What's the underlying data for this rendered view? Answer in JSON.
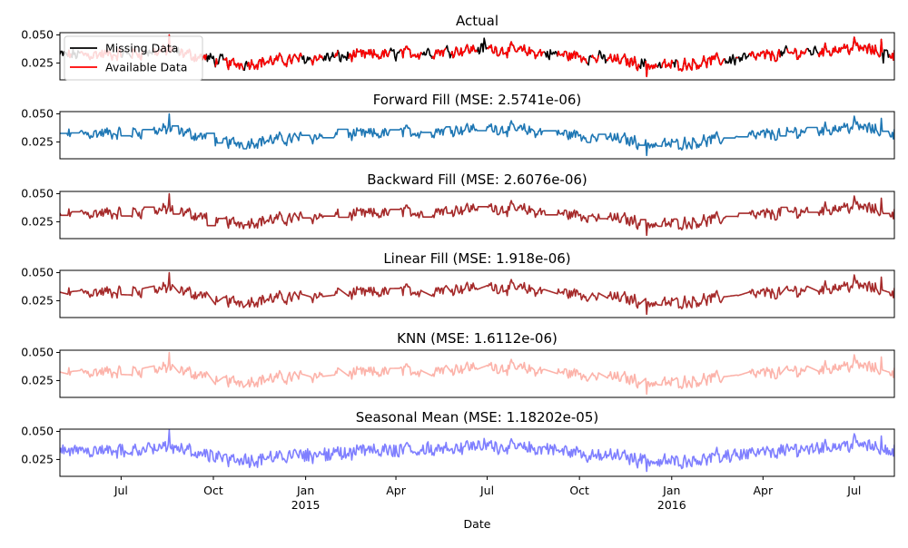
{
  "chart_data": {
    "type": "line",
    "xlabel": "Date",
    "x_range": [
      "2014-05-01",
      "2016-08-10"
    ],
    "x_ticks": [
      {
        "date": "2014-07-01",
        "label": "Jul",
        "sublabel": ""
      },
      {
        "date": "2014-10-01",
        "label": "Oct",
        "sublabel": ""
      },
      {
        "date": "2015-01-01",
        "label": "Jan",
        "sublabel": "2015"
      },
      {
        "date": "2015-04-01",
        "label": "Apr",
        "sublabel": ""
      },
      {
        "date": "2015-07-01",
        "label": "Jul",
        "sublabel": ""
      },
      {
        "date": "2015-10-01",
        "label": "Oct",
        "sublabel": ""
      },
      {
        "date": "2016-01-01",
        "label": "Jan",
        "sublabel": "2016"
      },
      {
        "date": "2016-04-01",
        "label": "Apr",
        "sublabel": ""
      },
      {
        "date": "2016-07-01",
        "label": "Jul",
        "sublabel": ""
      }
    ],
    "ylim": [
      0.01,
      0.052
    ],
    "y_ticks": [
      {
        "value": 0.025,
        "label": "0.025"
      },
      {
        "value": 0.05,
        "label": "0.050"
      }
    ],
    "grid": false,
    "base_series": {
      "trend_points": [
        [
          "2014-05-01",
          0.032
        ],
        [
          "2014-07-01",
          0.033
        ],
        [
          "2014-08-18",
          0.036
        ],
        [
          "2014-10-01",
          0.028
        ],
        [
          "2014-10-20",
          0.024
        ],
        [
          "2015-01-01",
          0.029
        ],
        [
          "2015-04-01",
          0.033
        ],
        [
          "2015-07-01",
          0.038
        ],
        [
          "2015-10-01",
          0.031
        ],
        [
          "2015-11-25",
          0.026
        ],
        [
          "2015-12-20",
          0.022
        ],
        [
          "2016-01-10",
          0.024
        ],
        [
          "2016-04-01",
          0.031
        ],
        [
          "2016-07-01",
          0.039
        ],
        [
          "2016-08-10",
          0.033
        ]
      ],
      "spikes": [
        [
          "2014-08-18",
          0.05
        ],
        [
          "2015-06-28",
          0.047
        ],
        [
          "2015-12-07",
          0.013
        ],
        [
          "2016-07-01",
          0.048
        ],
        [
          "2016-07-28",
          0.046
        ],
        [
          "2016-07-30",
          0.025
        ]
      ]
    },
    "panels": [
      {
        "title": "Actual",
        "legend": {
          "placement": "upper-left",
          "entries": [
            {
              "label": "Missing Data",
              "color": "#000000"
            },
            {
              "label": "Available Data",
              "color": "#ff0000"
            }
          ]
        },
        "series": [
          {
            "name": "Missing Data",
            "color": "#000000",
            "role": "full"
          },
          {
            "name": "Available Data",
            "color": "#ff0000",
            "role": "available"
          }
        ]
      },
      {
        "title": "Forward Fill (MSE: 2.5741e-06)",
        "series": [
          {
            "color": "#1f77b4",
            "method": "forward_fill"
          }
        ]
      },
      {
        "title": "Backward Fill (MSE: 2.6076e-06)",
        "series": [
          {
            "color": "#a52a2a",
            "method": "backward_fill"
          }
        ]
      },
      {
        "title": "Linear Fill (MSE: 1.918e-06)",
        "series": [
          {
            "color": "#a52a2a",
            "method": "linear"
          }
        ]
      },
      {
        "title": "KNN (MSE: 1.6112e-06)",
        "series": [
          {
            "color": "#fa8072",
            "opacity": 0.6,
            "method": "knn"
          }
        ]
      },
      {
        "title": "Seasonal Mean (MSE: 1.18202e-05)",
        "series": [
          {
            "color": "#0000ff",
            "opacity": 0.5,
            "method": "seasonal"
          }
        ]
      }
    ]
  }
}
